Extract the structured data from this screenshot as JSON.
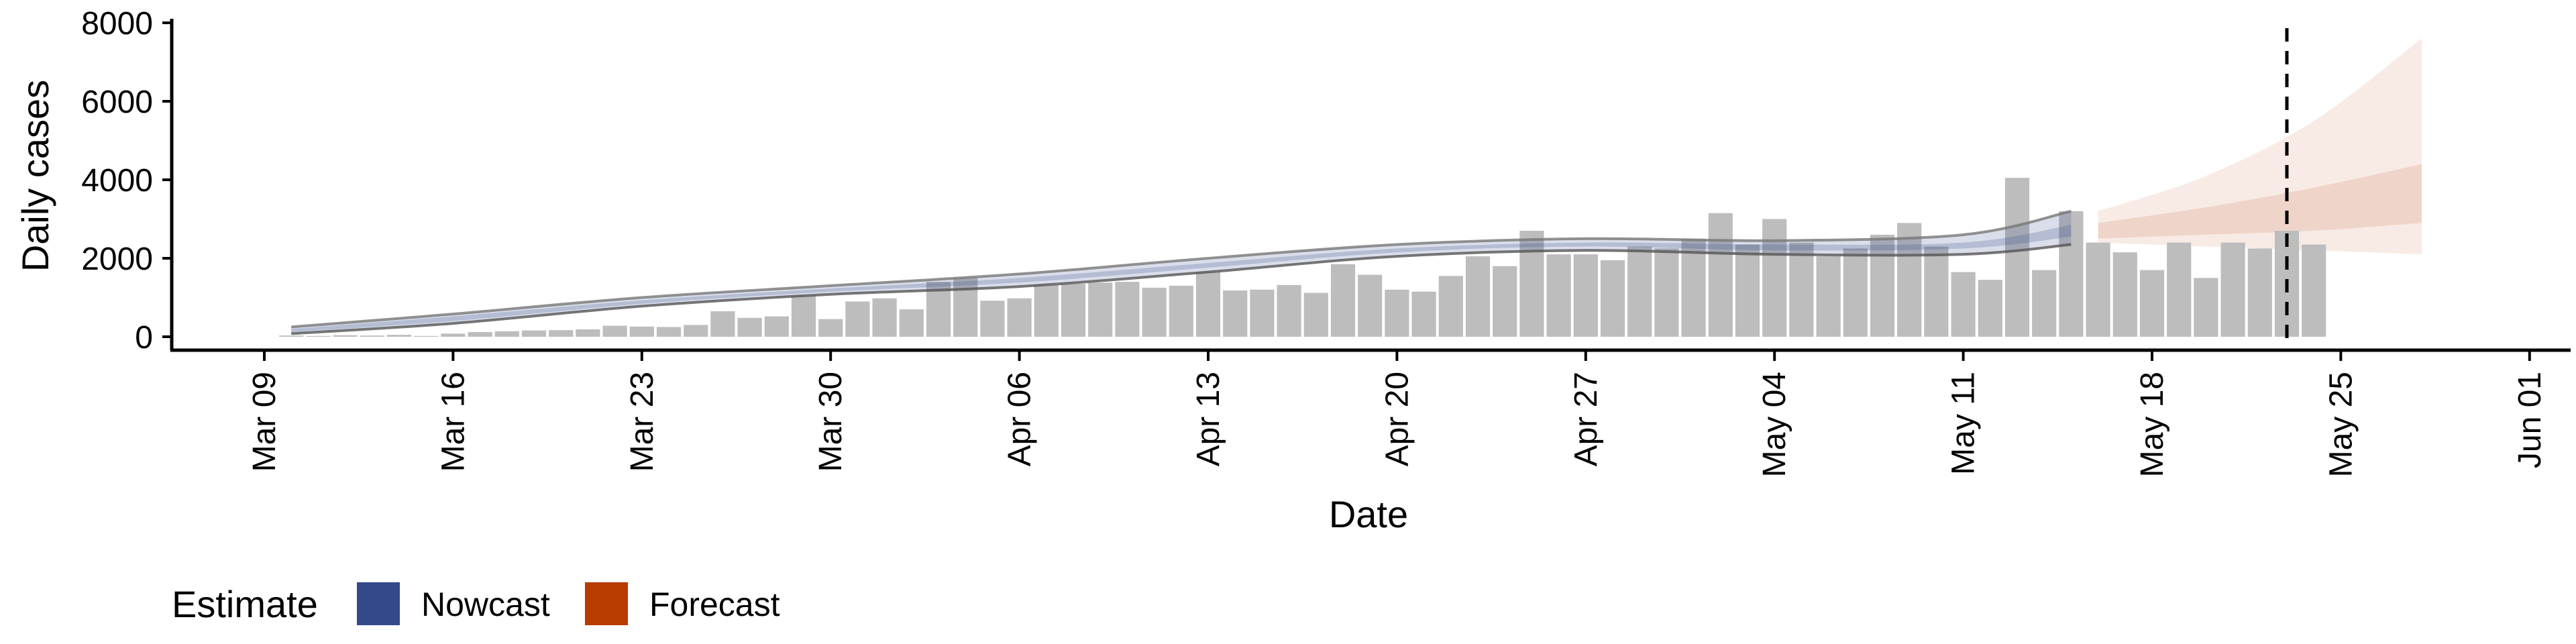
{
  "chart_data": {
    "type": "bar",
    "xlabel": "Date",
    "ylabel": "Daily cases",
    "y_ticks": [
      0,
      2000,
      4000,
      6000,
      8000
    ],
    "ylim": [
      -400,
      8000
    ],
    "x_ticks": [
      "Mar 09",
      "Mar 16",
      "Mar 23",
      "Mar 30",
      "Apr 06",
      "Apr 13",
      "Apr 20",
      "Apr 27",
      "May 04",
      "May 11",
      "May 18",
      "May 25",
      "Jun 01"
    ],
    "bars": {
      "start_date": "2020-03-10",
      "color": "#bdbdbd",
      "values": [
        30,
        20,
        40,
        30,
        50,
        20,
        80,
        120,
        140,
        160,
        170,
        190,
        280,
        260,
        250,
        300,
        650,
        480,
        520,
        1050,
        450,
        900,
        980,
        700,
        1400,
        1500,
        920,
        980,
        1320,
        1350,
        1380,
        1400,
        1250,
        1300,
        1650,
        1180,
        1200,
        1320,
        1120,
        1850,
        1580,
        1200,
        1150,
        1550,
        2050,
        1800,
        2700,
        2100,
        2100,
        1950,
        2300,
        2250,
        2500,
        3150,
        2350,
        3000,
        2400,
        2050,
        2250,
        2600,
        2900,
        2300,
        1650,
        1450,
        4050,
        1700,
        3200,
        2400,
        2150,
        1700,
        2400,
        1500,
        2400,
        2250,
        2700,
        2350
      ]
    },
    "nowcast": {
      "name": "Nowcast",
      "color": "#34498a",
      "dates": [
        "2020-03-10",
        "2020-03-16",
        "2020-03-23",
        "2020-03-30",
        "2020-04-06",
        "2020-04-13",
        "2020-04-20",
        "2020-04-27",
        "2020-05-04",
        "2020-05-11",
        "2020-05-15"
      ],
      "upper": [
        250,
        580,
        1000,
        1300,
        1600,
        2000,
        2350,
        2500,
        2450,
        2600,
        3200
      ],
      "lower": [
        80,
        340,
        780,
        1080,
        1280,
        1650,
        2050,
        2200,
        2100,
        2100,
        2350
      ],
      "inner_upper": [
        200,
        520,
        930,
        1230,
        1500,
        1880,
        2250,
        2400,
        2350,
        2400,
        2850
      ],
      "inner_lower": [
        120,
        400,
        840,
        1150,
        1380,
        1760,
        2150,
        2300,
        2200,
        2250,
        2550
      ]
    },
    "forecast": {
      "name": "Forecast",
      "color": "#b83b00",
      "dates": [
        "2020-05-16",
        "2020-05-20",
        "2020-05-24",
        "2020-05-28"
      ],
      "outer_upper": [
        3200,
        4100,
        5500,
        7600
      ],
      "outer_lower": [
        2400,
        2300,
        2200,
        2100
      ],
      "inner_upper": [
        2900,
        3300,
        3800,
        4400
      ],
      "inner_lower": [
        2500,
        2600,
        2700,
        2900
      ]
    },
    "current_date_line": "2020-05-23",
    "legend": {
      "title": "Estimate",
      "placement": "bottom-left",
      "items": [
        {
          "label": "Nowcast",
          "color": "#34498a"
        },
        {
          "label": "Forecast",
          "color": "#b83b00"
        }
      ]
    }
  }
}
